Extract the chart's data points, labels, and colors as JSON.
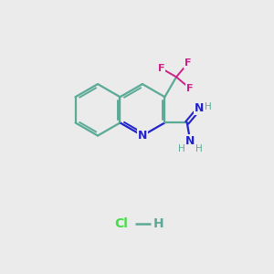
{
  "bg_color": "#ebebeb",
  "bond_color": "#5aaa96",
  "N_color": "#2222cc",
  "F_color": "#cc2288",
  "Cl_color": "#44dd44",
  "H_color": "#5aaa96",
  "HCl_H_color": "#5aaa96",
  "bond_lw": 1.6,
  "inner_lw": 1.4,
  "blen": 0.95,
  "figsize": [
    3.0,
    3.0
  ],
  "dpi": 100,
  "xlim": [
    0,
    10
  ],
  "ylim": [
    0,
    10
  ],
  "pyc_x": 5.2,
  "pyc_y": 6.0,
  "hcl_x": 4.8,
  "hcl_y": 1.8
}
